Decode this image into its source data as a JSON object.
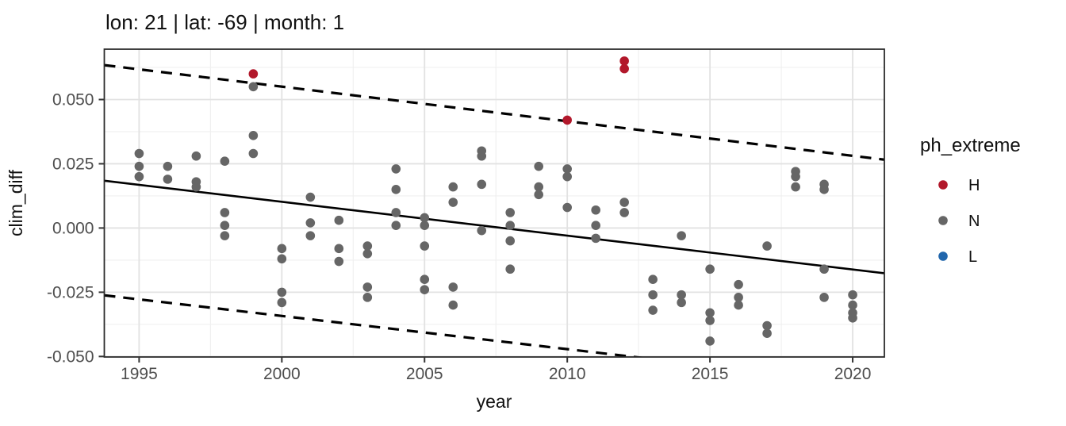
{
  "title": "lon: 21 | lat: -69 | month: 1",
  "axes": {
    "x": {
      "label": "year",
      "lim": [
        1993.78,
        2021.11
      ],
      "ticks": [
        1995,
        2000,
        2005,
        2010,
        2015,
        2020
      ],
      "tick_labels": [
        "1995",
        "2000",
        "2005",
        "2010",
        "2015",
        "2020"
      ],
      "minor": [
        1997.5,
        2002.5,
        2007.5,
        2012.5,
        2017.5
      ]
    },
    "y": {
      "label": "clim_diff",
      "lim": [
        -0.0502,
        0.0696
      ],
      "ticks": [
        -0.05,
        -0.025,
        0.0,
        0.025,
        0.05
      ],
      "tick_labels": [
        "-0.050",
        "-0.025",
        "0.000",
        "0.025",
        "0.050"
      ],
      "minor": [
        -0.0375,
        -0.0125,
        0.0125,
        0.0375,
        0.0625
      ]
    }
  },
  "legend": {
    "title": "ph_extreme",
    "position": "right",
    "items": [
      {
        "label": "H",
        "color": "#b2182b"
      },
      {
        "label": "N",
        "color": "#666666"
      },
      {
        "label": "L",
        "color": "#2166ac"
      }
    ]
  },
  "colors": {
    "grid_major": "#e2e2e2",
    "grid_minor": "#efefef",
    "panel_border": "#2b2b2b",
    "tick_mark": "#333333",
    "line": "#000000",
    "background": "#ffffff"
  },
  "chart_data": {
    "type": "scatter",
    "title": "lon: 21 | lat: -69 | month: 1",
    "xlabel": "year",
    "ylabel": "clim_diff",
    "xlim": [
      1993.78,
      2021.11
    ],
    "ylim": [
      -0.0502,
      0.0696
    ],
    "grid": true,
    "legend_position": "right",
    "series": [
      {
        "name": "H",
        "color": "#b2182b",
        "points": [
          [
            1999,
            0.06
          ],
          [
            2010,
            0.042
          ],
          [
            2012,
            0.065
          ],
          [
            2012,
            0.062
          ]
        ]
      },
      {
        "name": "N",
        "color": "#666666",
        "points": [
          [
            1995,
            0.029
          ],
          [
            1995,
            0.024
          ],
          [
            1995,
            0.02
          ],
          [
            1996,
            0.024
          ],
          [
            1996,
            0.019
          ],
          [
            1997,
            0.028
          ],
          [
            1997,
            0.018
          ],
          [
            1997,
            0.016
          ],
          [
            1998,
            0.026
          ],
          [
            1998,
            0.006
          ],
          [
            1998,
            0.001
          ],
          [
            1998,
            -0.003
          ],
          [
            1999,
            0.055
          ],
          [
            1999,
            0.036
          ],
          [
            1999,
            0.029
          ],
          [
            2000,
            -0.008
          ],
          [
            2000,
            -0.012
          ],
          [
            2000,
            -0.025
          ],
          [
            2000,
            -0.029
          ],
          [
            2001,
            0.012
          ],
          [
            2001,
            0.002
          ],
          [
            2001,
            -0.003
          ],
          [
            2002,
            0.003
          ],
          [
            2002,
            -0.008
          ],
          [
            2002,
            -0.013
          ],
          [
            2003,
            -0.007
          ],
          [
            2003,
            -0.01
          ],
          [
            2003,
            -0.023
          ],
          [
            2003,
            -0.027
          ],
          [
            2004,
            0.023
          ],
          [
            2004,
            0.015
          ],
          [
            2004,
            0.006
          ],
          [
            2004,
            0.001
          ],
          [
            2005,
            0.004
          ],
          [
            2005,
            0.001
          ],
          [
            2005,
            -0.007
          ],
          [
            2005,
            -0.02
          ],
          [
            2005,
            -0.024
          ],
          [
            2006,
            0.016
          ],
          [
            2006,
            0.01
          ],
          [
            2006,
            -0.023
          ],
          [
            2006,
            -0.03
          ],
          [
            2007,
            0.03
          ],
          [
            2007,
            0.028
          ],
          [
            2007,
            0.017
          ],
          [
            2007,
            -0.001
          ],
          [
            2008,
            0.006
          ],
          [
            2008,
            0.001
          ],
          [
            2008,
            -0.005
          ],
          [
            2008,
            -0.016
          ],
          [
            2009,
            0.024
          ],
          [
            2009,
            0.016
          ],
          [
            2009,
            0.013
          ],
          [
            2010,
            0.023
          ],
          [
            2010,
            0.02
          ],
          [
            2010,
            0.008
          ],
          [
            2011,
            0.007
          ],
          [
            2011,
            0.001
          ],
          [
            2011,
            -0.004
          ],
          [
            2012,
            0.01
          ],
          [
            2012,
            0.006
          ],
          [
            2013,
            -0.02
          ],
          [
            2013,
            -0.026
          ],
          [
            2013,
            -0.032
          ],
          [
            2014,
            -0.003
          ],
          [
            2014,
            -0.026
          ],
          [
            2014,
            -0.029
          ],
          [
            2015,
            -0.016
          ],
          [
            2015,
            -0.033
          ],
          [
            2015,
            -0.036
          ],
          [
            2015,
            -0.044
          ],
          [
            2016,
            -0.022
          ],
          [
            2016,
            -0.027
          ],
          [
            2016,
            -0.03
          ],
          [
            2017,
            -0.007
          ],
          [
            2017,
            -0.038
          ],
          [
            2017,
            -0.041
          ],
          [
            2018,
            0.022
          ],
          [
            2018,
            0.02
          ],
          [
            2018,
            0.016
          ],
          [
            2019,
            0.017
          ],
          [
            2019,
            0.015
          ],
          [
            2019,
            -0.016
          ],
          [
            2019,
            -0.027
          ],
          [
            2020,
            -0.026
          ],
          [
            2020,
            -0.03
          ],
          [
            2020,
            -0.033
          ],
          [
            2020,
            -0.035
          ]
        ]
      },
      {
        "name": "L",
        "color": "#2166ac",
        "points": []
      }
    ],
    "trend_line": {
      "style": "solid",
      "color": "#000000",
      "x": [
        1993.78,
        2021.11
      ],
      "y": [
        0.0184,
        -0.0176
      ]
    },
    "upper_band": {
      "style": "dashed",
      "color": "#000000",
      "x": [
        1993.78,
        2021.11
      ],
      "y": [
        0.0634,
        0.0266
      ]
    },
    "lower_band": {
      "style": "dashed",
      "color": "#000000",
      "x": [
        1993.78,
        2021.11
      ],
      "y": [
        -0.0262,
        -0.0615
      ]
    }
  }
}
